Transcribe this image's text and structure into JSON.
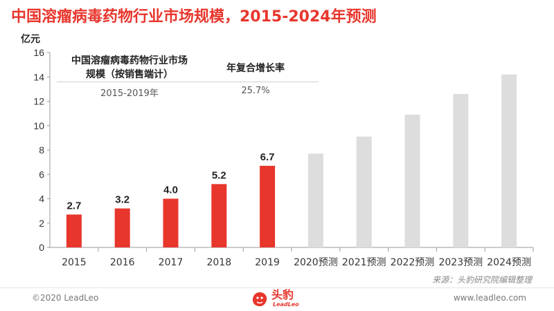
{
  "page": {
    "title": "中国溶瘤病毒药物行业市场规模，2015-2024年预测",
    "source": "来源：头豹研究院编辑整理",
    "copyright": "©2020 LeadLeo",
    "website": "www.leadleo.com",
    "logo_text": "头豹",
    "logo_subtext": "LeadLeo"
  },
  "cagr_table": {
    "header_1": "中国溶瘤病毒药物行业市场规模（按销售端计）",
    "header_2": "年复合增长率",
    "period": "2015-2019年",
    "rate": "25.7%"
  },
  "colors": {
    "actual": "#e8362d",
    "forecast": "#dddddd",
    "title": "#e8362d"
  },
  "chart_data": {
    "type": "bar",
    "title": "中国溶瘤病毒药物行业市场规模，2015-2024年预测",
    "ylabel": "亿元",
    "xlabel": "",
    "ylim": [
      0,
      16
    ],
    "yticks": [
      0,
      2,
      4,
      6,
      8,
      10,
      12,
      14,
      16
    ],
    "grid": false,
    "categories": [
      "2015",
      "2016",
      "2017",
      "2018",
      "2019",
      "2020预测",
      "2021预测",
      "2022预测",
      "2023预测",
      "2024预测"
    ],
    "values": [
      2.7,
      3.2,
      4.0,
      5.2,
      6.7,
      7.7,
      9.1,
      10.9,
      12.6,
      14.2
    ],
    "data_labels": [
      "2.7",
      "3.2",
      "4.0",
      "5.2",
      "6.7",
      "",
      "",
      "",
      "",
      ""
    ],
    "forecast": [
      false,
      false,
      false,
      false,
      false,
      true,
      true,
      true,
      true,
      true
    ]
  }
}
